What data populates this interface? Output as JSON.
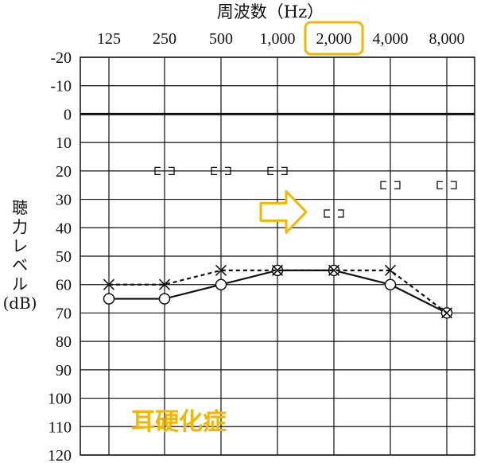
{
  "chart_data": {
    "type": "line",
    "title": "",
    "xlabel": "周波数（Hz）",
    "ylabel_lines": [
      "聴",
      "力",
      "レ",
      "ベ",
      "ル",
      "(dB)"
    ],
    "x": [
      125,
      250,
      500,
      1000,
      2000,
      4000,
      8000
    ],
    "x_tick_labels": [
      "125",
      "250",
      "500",
      "1,000",
      "2,000",
      "4,000",
      "8,000"
    ],
    "x_scale": "log2",
    "ylim": [
      -20,
      120
    ],
    "y_inverted": true,
    "y_ticks": [
      -20,
      -10,
      0,
      10,
      20,
      30,
      40,
      50,
      60,
      70,
      80,
      90,
      100,
      110,
      120
    ],
    "grid": true,
    "series": [
      {
        "marker": "circle",
        "line": "solid",
        "values": [
          65,
          65,
          60,
          55,
          55,
          60,
          70
        ]
      },
      {
        "marker": "cross",
        "line": "dashed",
        "values": [
          60,
          60,
          55,
          55,
          55,
          55,
          70
        ]
      },
      {
        "marker": "bracket-pair",
        "line": "none",
        "points": [
          [
            250,
            20
          ],
          [
            500,
            20
          ],
          [
            1000,
            20
          ],
          [
            2000,
            35
          ],
          [
            4000,
            25
          ],
          [
            8000,
            25
          ]
        ]
      }
    ],
    "annotations": [
      {
        "type": "highlight-box",
        "target_x": 2000,
        "color": "#f2b705"
      },
      {
        "type": "arrow",
        "points_to_x": 2000,
        "at_y": 35,
        "color": "#f2b705"
      }
    ],
    "diagnosis_label": "耳硬化症",
    "accent_color": "#f2b705"
  }
}
